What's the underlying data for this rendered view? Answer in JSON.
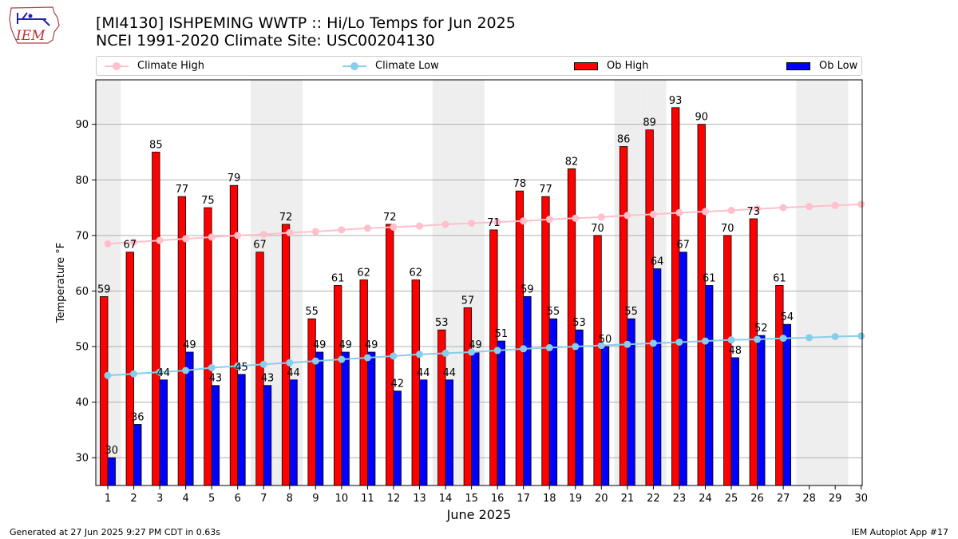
{
  "header": {
    "title_line1": "[MI4130] ISHPEMING WWTP :: Hi/Lo Temps for Jun 2025",
    "title_line2": "NCEI 1991-2020 Climate Site: USC00204130",
    "logo_text": "IEM"
  },
  "legend": {
    "climate_high": "Climate High",
    "climate_low": "Climate Low",
    "ob_high": "Ob High",
    "ob_low": "Ob Low"
  },
  "footer": {
    "left": "Generated at 27 Jun 2025 9:27 PM CDT in 0.63s",
    "right": "IEM Autoplot App #17"
  },
  "colors": {
    "ob_high": "#ff0000",
    "ob_low": "#0000ff",
    "climate_high": "#ffc0cb",
    "climate_low": "#87ceeb",
    "weekend_shade": "#eeeeee",
    "grid": "#b0b0b0"
  },
  "chart_data": {
    "type": "bar",
    "xlabel": "June 2025",
    "ylabel": "Temperature °F",
    "ylim": [
      25,
      98
    ],
    "yticks": [
      30,
      40,
      50,
      60,
      70,
      80,
      90
    ],
    "grid": "horizontal",
    "legend_position": "top",
    "categories": [
      "1",
      "2",
      "3",
      "4",
      "5",
      "6",
      "7",
      "8",
      "9",
      "10",
      "11",
      "12",
      "13",
      "14",
      "15",
      "16",
      "17",
      "18",
      "19",
      "20",
      "21",
      "22",
      "23",
      "24",
      "25",
      "26",
      "27",
      "28",
      "29",
      "30"
    ],
    "series": [
      {
        "name": "Ob High",
        "kind": "bar",
        "values": [
          59,
          67,
          85,
          77,
          75,
          79,
          67,
          72,
          55,
          61,
          62,
          72,
          62,
          53,
          57,
          71,
          78,
          77,
          82,
          70,
          86,
          89,
          93,
          90,
          70,
          73,
          61,
          null,
          null,
          null
        ]
      },
      {
        "name": "Ob Low",
        "kind": "bar",
        "values": [
          30,
          36,
          44,
          49,
          43,
          45,
          43,
          44,
          49,
          49,
          49,
          42,
          44,
          44,
          49,
          51,
          59,
          55,
          53,
          50,
          55,
          64,
          67,
          61,
          48,
          52,
          54,
          null,
          null,
          null
        ]
      },
      {
        "name": "Climate High",
        "kind": "line",
        "values": [
          68.5,
          68.8,
          69.1,
          69.4,
          69.7,
          70.0,
          70.2,
          70.5,
          70.7,
          71.0,
          71.3,
          71.5,
          71.7,
          72.0,
          72.2,
          72.4,
          72.6,
          72.9,
          73.1,
          73.3,
          73.6,
          73.8,
          74.1,
          74.3,
          74.5,
          74.8,
          75.0,
          75.2,
          75.4,
          75.6
        ]
      },
      {
        "name": "Climate Low",
        "kind": "line",
        "values": [
          44.8,
          45.1,
          45.4,
          45.7,
          46.2,
          46.5,
          46.8,
          47.1,
          47.4,
          47.7,
          48.0,
          48.3,
          48.6,
          48.8,
          49.0,
          49.3,
          49.6,
          49.8,
          50.0,
          50.2,
          50.4,
          50.6,
          50.8,
          51.0,
          51.2,
          51.3,
          51.5,
          51.6,
          51.8,
          51.9
        ]
      }
    ],
    "shaded_days": [
      1,
      7,
      8,
      14,
      15,
      21,
      22,
      28,
      29
    ]
  }
}
